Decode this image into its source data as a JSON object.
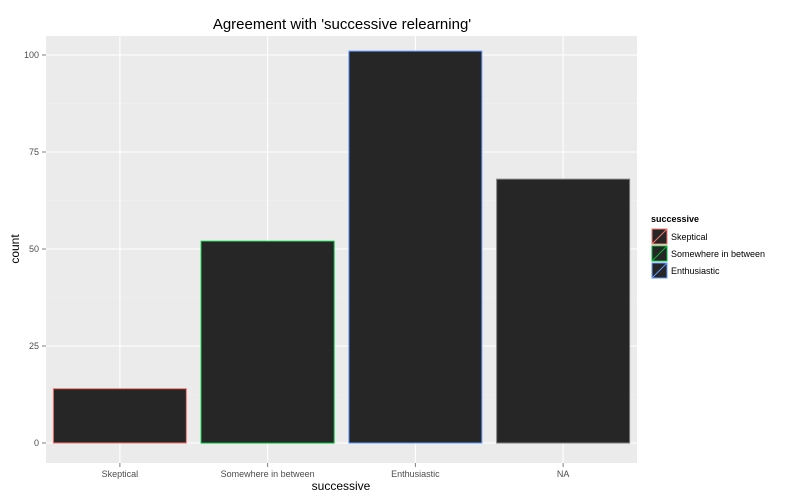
{
  "chart_data": {
    "type": "bar",
    "title": "Agreement with 'successive relearning'",
    "xlabel": "successive",
    "ylabel": "count",
    "categories": [
      "Skeptical",
      "Somewhere in between",
      "Enthusiastic",
      "NA"
    ],
    "values": [
      14,
      52,
      101,
      68
    ],
    "ylim": [
      0,
      104
    ],
    "y_ticks": [
      0,
      25,
      50,
      75,
      100
    ],
    "y_tick_labels": [
      "0",
      "25",
      "50",
      "75",
      "100"
    ],
    "grid": true,
    "bar_fill": "#262626",
    "outline_colors": [
      "#f8766d",
      "#00ba38",
      "#619cff",
      "#7f7f7f"
    ],
    "panel_background": "#ebebeb",
    "legend": {
      "title": "successive",
      "placement": "right",
      "entries": [
        {
          "label": "Skeptical",
          "color": "#f8766d"
        },
        {
          "label": "Somewhere in between",
          "color": "#00ba38"
        },
        {
          "label": "Enthusiastic",
          "color": "#619cff"
        }
      ]
    }
  }
}
